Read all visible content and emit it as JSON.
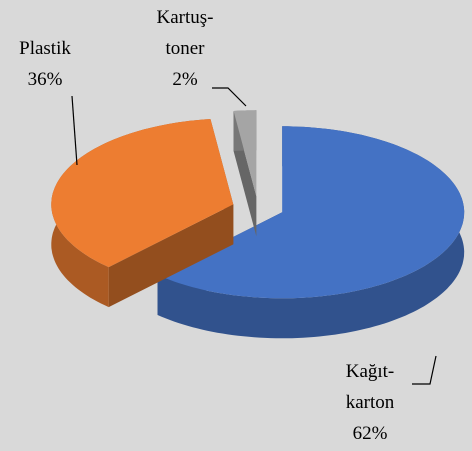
{
  "chart_data": {
    "type": "pie3d",
    "categories": [
      "Kağıt-karton",
      "Plastik",
      "Kartuş-toner"
    ],
    "values": [
      62,
      36,
      2
    ],
    "value_labels": [
      "62%",
      "36%",
      "2%"
    ],
    "colors": [
      "#4472c4",
      "#ed7d31",
      "#a5a5a5"
    ],
    "exploded": true
  }
}
